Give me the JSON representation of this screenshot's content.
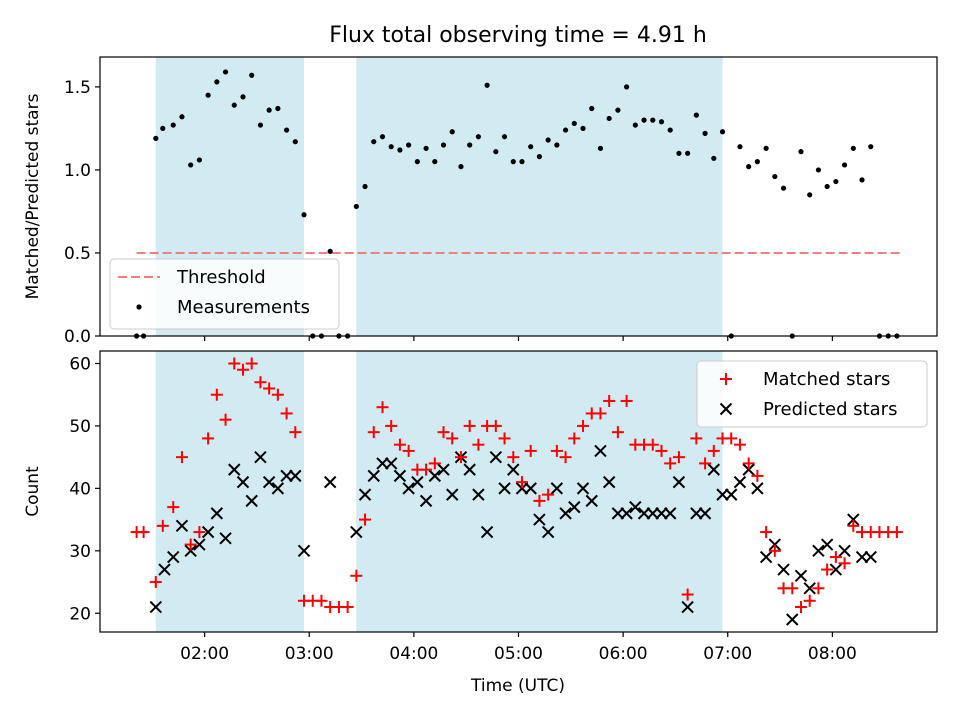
{
  "figure": {
    "title": "Flux total observing time = 4.91 h",
    "xlabel": "Time (UTC)"
  },
  "colors": {
    "span": "#add8e6",
    "threshold": "#f08080",
    "measurement": "#000000",
    "matched": "#ff0000",
    "predicted": "#000000"
  },
  "chart_data": [
    {
      "type": "scatter",
      "ylabel": "Matched/Predicted stars",
      "ylim": [
        0,
        1.68
      ],
      "yticks": [
        0.0,
        0.5,
        1.0,
        1.5
      ],
      "ytick_labels": [
        "0.0",
        "0.5",
        "1.0",
        "1.5"
      ],
      "xlim_hours": [
        1.0,
        9.0
      ],
      "observing_spans": [
        [
          "01:32",
          "02:57"
        ],
        [
          "03:27",
          "06:57"
        ]
      ],
      "legend_position": "lower-left",
      "threshold": {
        "name": "Threshold",
        "value": 0.5,
        "x_range": [
          "01:21",
          "08:39"
        ],
        "style": "dashed"
      },
      "series": [
        {
          "name": "Measurements",
          "x": [
            "01:21",
            "01:25",
            "01:32",
            "01:36",
            "01:42",
            "01:47",
            "01:52",
            "01:57",
            "02:02",
            "02:07",
            "02:12",
            "02:17",
            "02:22",
            "02:27",
            "02:32",
            "02:37",
            "02:42",
            "02:47",
            "02:52",
            "02:57",
            "03:02",
            "03:07",
            "03:12",
            "03:17",
            "03:22",
            "03:27",
            "03:32",
            "03:37",
            "03:42",
            "03:47",
            "03:52",
            "03:57",
            "04:02",
            "04:07",
            "04:12",
            "04:17",
            "04:22",
            "04:27",
            "04:32",
            "04:37",
            "04:42",
            "04:47",
            "04:52",
            "04:57",
            "05:02",
            "05:07",
            "05:12",
            "05:17",
            "05:22",
            "05:27",
            "05:32",
            "05:37",
            "05:42",
            "05:47",
            "05:52",
            "05:57",
            "06:02",
            "06:07",
            "06:12",
            "06:17",
            "06:22",
            "06:27",
            "06:32",
            "06:37",
            "06:42",
            "06:47",
            "06:52",
            "06:57",
            "07:02",
            "07:07",
            "07:12",
            "07:17",
            "07:22",
            "07:27",
            "07:32",
            "07:37",
            "07:42",
            "07:47",
            "07:52",
            "07:57",
            "08:02",
            "08:07",
            "08:12",
            "08:17",
            "08:22",
            "08:27",
            "08:32",
            "08:37"
          ],
          "y": [
            0,
            0,
            1.19,
            1.25,
            1.27,
            1.32,
            1.03,
            1.06,
            1.45,
            1.53,
            1.59,
            1.39,
            1.44,
            1.57,
            1.27,
            1.36,
            1.37,
            1.24,
            1.17,
            0.73,
            0,
            0,
            0.51,
            0,
            0,
            0.78,
            0.9,
            1.17,
            1.2,
            1.14,
            1.12,
            1.15,
            1.05,
            1.13,
            1.05,
            1.15,
            1.23,
            1.02,
            1.15,
            1.2,
            1.51,
            1.11,
            1.2,
            1.05,
            1.05,
            1.14,
            1.08,
            1.18,
            1.15,
            1.24,
            1.28,
            1.25,
            1.37,
            1.13,
            1.31,
            1.36,
            1.5,
            1.27,
            1.3,
            1.3,
            1.29,
            1.24,
            1.1,
            1.1,
            1.33,
            1.22,
            1.07,
            1.23,
            0,
            1.14,
            1.02,
            1.05,
            1.13,
            0.96,
            0.89,
            0,
            1.11,
            0.85,
            1.0,
            0.9,
            0.93,
            1.03,
            1.13,
            0.94,
            1.14,
            0,
            0,
            0
          ]
        }
      ]
    },
    {
      "type": "scatter",
      "ylabel": "Count",
      "ylim": [
        17,
        62
      ],
      "yticks": [
        20,
        30,
        40,
        50,
        60
      ],
      "ytick_labels": [
        "20",
        "30",
        "40",
        "50",
        "60"
      ],
      "xlim_hours": [
        1.0,
        9.0
      ],
      "xticks_hours": [
        2,
        3,
        4,
        5,
        6,
        7,
        8
      ],
      "xtick_labels": [
        "02:00",
        "03:00",
        "04:00",
        "05:00",
        "06:00",
        "07:00",
        "08:00"
      ],
      "observing_spans": [
        [
          "01:32",
          "02:57"
        ],
        [
          "03:27",
          "06:57"
        ]
      ],
      "legend_position": "upper-right",
      "series": [
        {
          "name": "Matched stars",
          "marker": "plus",
          "x": [
            "01:21",
            "01:25",
            "01:32",
            "01:36",
            "01:42",
            "01:47",
            "01:52",
            "01:57",
            "02:02",
            "02:07",
            "02:12",
            "02:17",
            "02:22",
            "02:27",
            "02:32",
            "02:37",
            "02:42",
            "02:47",
            "02:52",
            "02:57",
            "03:02",
            "03:07",
            "03:12",
            "03:17",
            "03:22",
            "03:27",
            "03:32",
            "03:37",
            "03:42",
            "03:47",
            "03:52",
            "03:57",
            "04:02",
            "04:07",
            "04:12",
            "04:17",
            "04:22",
            "04:27",
            "04:32",
            "04:37",
            "04:42",
            "04:47",
            "04:52",
            "04:57",
            "05:02",
            "05:07",
            "05:12",
            "05:17",
            "05:22",
            "05:27",
            "05:32",
            "05:37",
            "05:42",
            "05:47",
            "05:52",
            "05:57",
            "06:02",
            "06:07",
            "06:12",
            "06:17",
            "06:22",
            "06:27",
            "06:32",
            "06:37",
            "06:42",
            "06:47",
            "06:52",
            "06:57",
            "07:02",
            "07:07",
            "07:12",
            "07:17",
            "07:22",
            "07:27",
            "07:32",
            "07:37",
            "07:42",
            "07:47",
            "07:52",
            "07:57",
            "08:02",
            "08:07",
            "08:12",
            "08:17",
            "08:22",
            "08:27",
            "08:32",
            "08:37"
          ],
          "y": [
            33,
            33,
            25,
            34,
            37,
            45,
            31,
            33,
            48,
            55,
            51,
            60,
            59,
            60,
            57,
            56,
            55,
            52,
            49,
            22,
            22,
            22,
            21,
            21,
            21,
            26,
            35,
            49,
            53,
            50,
            47,
            46,
            43,
            43,
            44,
            49,
            48,
            45,
            50,
            47,
            50,
            50,
            48,
            45,
            41,
            46,
            38,
            39,
            46,
            45,
            48,
            50,
            52,
            52,
            54,
            49,
            54,
            47,
            47,
            47,
            46,
            44,
            45,
            23,
            48,
            44,
            46,
            48,
            48,
            47,
            44,
            42,
            33,
            30,
            24,
            24,
            21,
            22,
            24,
            27,
            29,
            28,
            34,
            33,
            33,
            33,
            33,
            33
          ]
        },
        {
          "name": "Predicted stars",
          "marker": "x",
          "x": [
            "01:32",
            "01:37",
            "01:42",
            "01:47",
            "01:52",
            "01:57",
            "02:02",
            "02:07",
            "02:12",
            "02:17",
            "02:22",
            "02:27",
            "02:32",
            "02:37",
            "02:42",
            "02:47",
            "02:52",
            "02:57",
            "03:12",
            "03:27",
            "03:32",
            "03:37",
            "03:42",
            "03:47",
            "03:52",
            "03:57",
            "04:02",
            "04:07",
            "04:12",
            "04:17",
            "04:22",
            "04:27",
            "04:32",
            "04:37",
            "04:42",
            "04:47",
            "04:52",
            "04:57",
            "05:02",
            "05:07",
            "05:12",
            "05:17",
            "05:22",
            "05:27",
            "05:32",
            "05:37",
            "05:42",
            "05:47",
            "05:52",
            "05:57",
            "06:02",
            "06:07",
            "06:12",
            "06:17",
            "06:22",
            "06:27",
            "06:32",
            "06:37",
            "06:42",
            "06:47",
            "06:52",
            "06:57",
            "07:02",
            "07:07",
            "07:12",
            "07:17",
            "07:22",
            "07:27",
            "07:32",
            "07:37",
            "07:42",
            "07:47",
            "07:52",
            "07:57",
            "08:02",
            "08:07",
            "08:12",
            "08:17",
            "08:22"
          ],
          "y": [
            21,
            27,
            29,
            34,
            30,
            31,
            33,
            36,
            32,
            43,
            41,
            38,
            45,
            41,
            40,
            42,
            42,
            30,
            41,
            33,
            39,
            42,
            44,
            44,
            42,
            40,
            41,
            38,
            42,
            43,
            39,
            45,
            43,
            39,
            33,
            45,
            40,
            43,
            40,
            40,
            35,
            33,
            40,
            36,
            37,
            40,
            38,
            46,
            41,
            36,
            36,
            37,
            36,
            36,
            36,
            36,
            41,
            21,
            36,
            36,
            43,
            39,
            39,
            41,
            43,
            40,
            29,
            31,
            27,
            19,
            26,
            24,
            30,
            31,
            27,
            30,
            35,
            29,
            29
          ]
        }
      ]
    }
  ]
}
